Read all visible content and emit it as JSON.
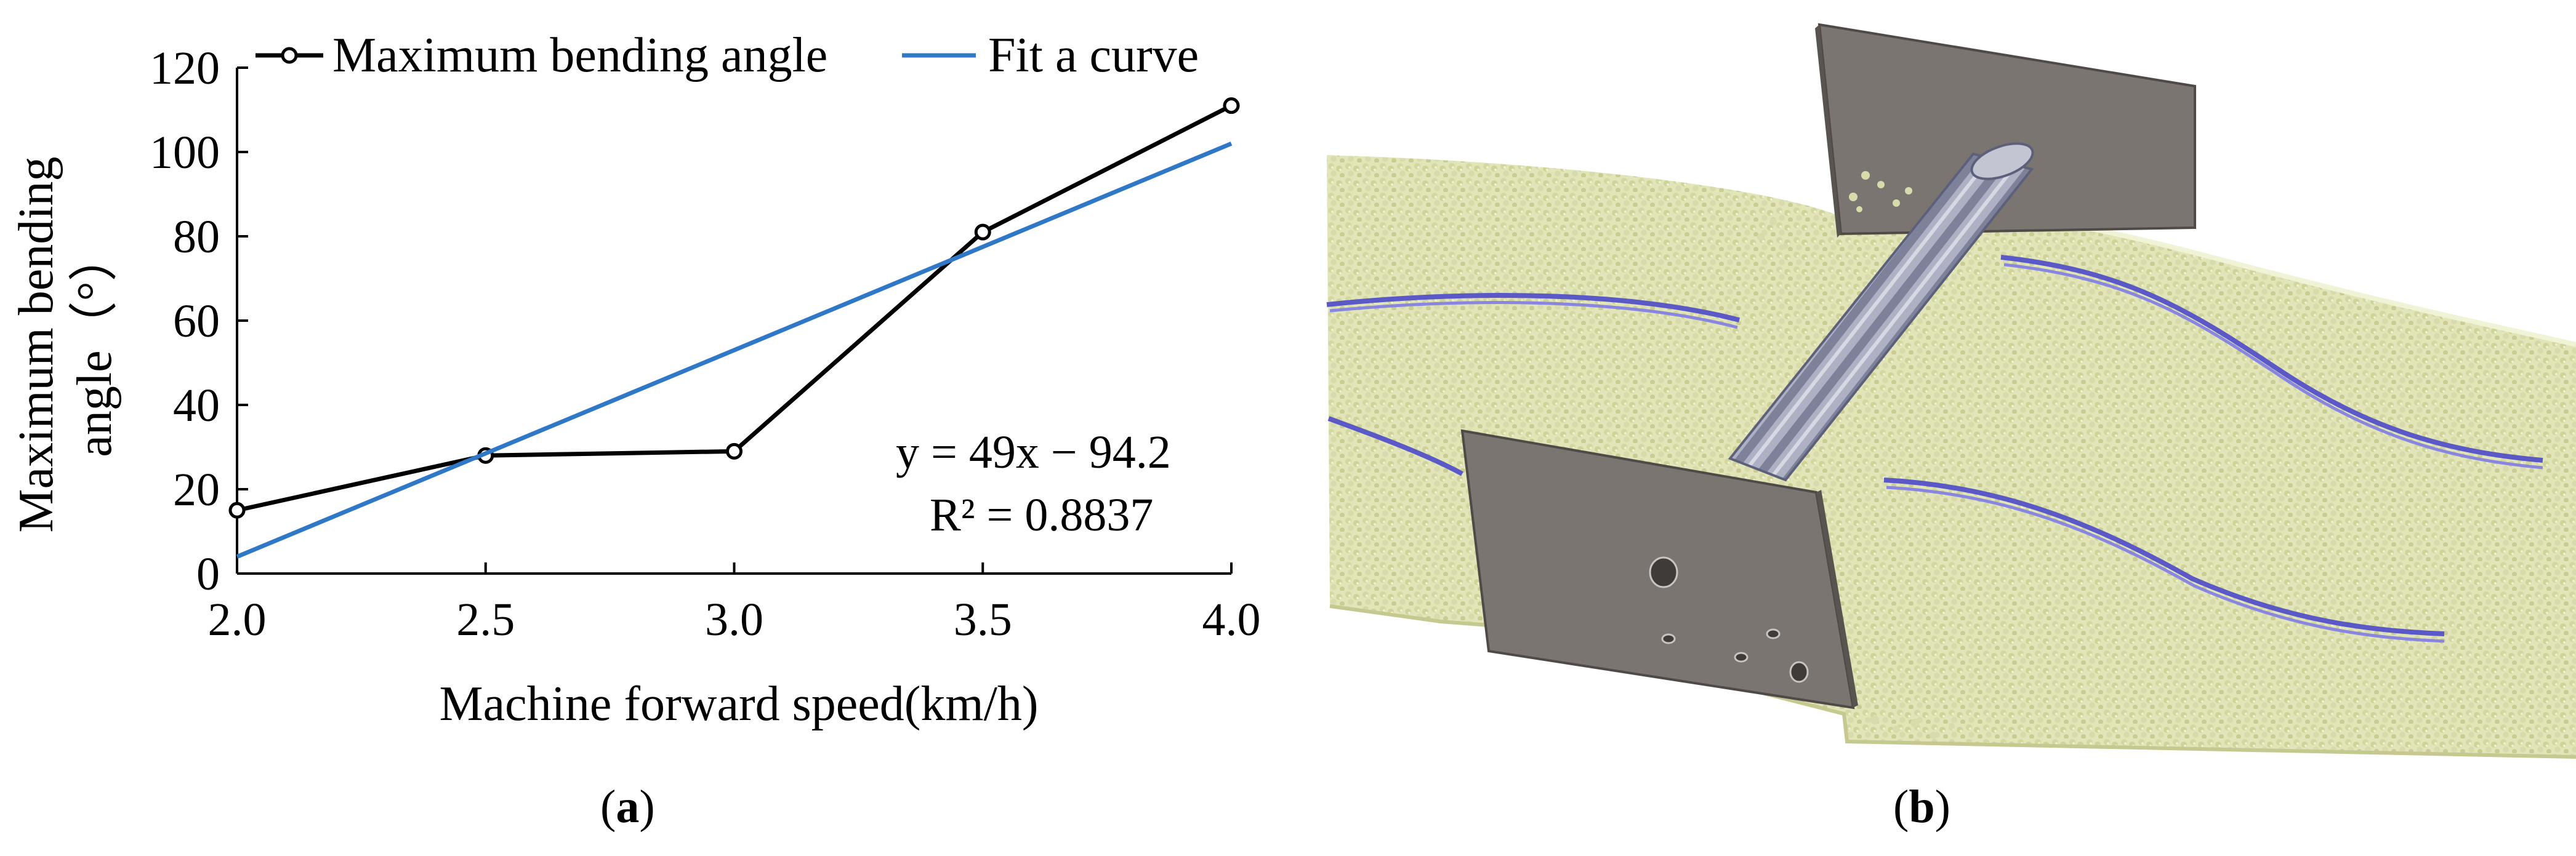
{
  "chart_data": {
    "type": "line",
    "xlabel": "Machine forward speed(km/h)",
    "ylabel_line1": "Maximum bending",
    "ylabel_line2": "angle（°）",
    "xlim": [
      2.0,
      4.0
    ],
    "ylim": [
      0,
      120
    ],
    "xticks": [
      "2.0",
      "2.5",
      "3.0",
      "3.5",
      "4.0"
    ],
    "yticks": [
      "0",
      "20",
      "40",
      "60",
      "80",
      "100",
      "120"
    ],
    "grid": false,
    "legend_position": "top",
    "series": [
      {
        "name": "Maximum bending angle",
        "color": "#000000",
        "marker": "open-circle",
        "x": [
          2.0,
          2.5,
          3.0,
          3.5,
          4.0
        ],
        "y": [
          15,
          28,
          29,
          81,
          111
        ]
      },
      {
        "name": "Fit a curve",
        "color": "#2f78c8",
        "marker": "none",
        "x": [
          2.0,
          4.0
        ],
        "y": [
          4,
          102
        ]
      }
    ],
    "annotation": {
      "equation": "y = 49x − 94.2",
      "r2": "R² = 0.8837"
    }
  },
  "captions": {
    "a": "a",
    "b": "b"
  },
  "colors": {
    "particles": "#e0e3b4",
    "particle_shadow": "#9a9c74",
    "plate": "#7a7470",
    "plate_edge": "#4e4946",
    "shaft": "#a9acc0",
    "blade": "#5a57c8"
  }
}
